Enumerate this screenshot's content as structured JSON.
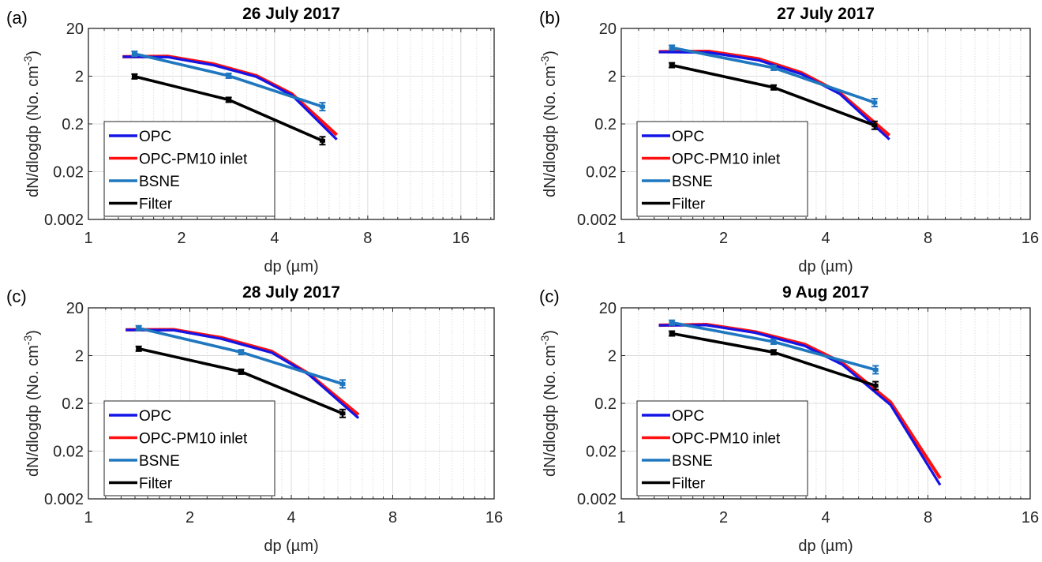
{
  "legend_entries": [
    {
      "name": "OPC",
      "color": "#1414E6"
    },
    {
      "name": "OPC-PM10 inlet",
      "color": "#FF1010"
    },
    {
      "name": "BSNE",
      "color": "#1F77BF"
    },
    {
      "name": "Filter",
      "color": "#000000"
    }
  ],
  "chart_data": [
    {
      "type": "line",
      "panel_label": "(a)",
      "title": "26 July 2017",
      "xlabel": "dp (µm)",
      "ylabel": "dN/dlogdp (No. cm",
      "ylabel_sup": "-3",
      "ylabel_end": ")",
      "xscale": "log2",
      "yscale": "log10",
      "xlim": [
        1,
        20.5
      ],
      "ylim": [
        0.002,
        20
      ],
      "xticks": [
        1,
        2,
        4,
        8,
        16
      ],
      "xtick_labels": [
        "1",
        "2",
        "4",
        "8",
        "16"
      ],
      "yticks": [
        0.002,
        0.02,
        0.2,
        2,
        20
      ],
      "ytick_labels": [
        "0.002",
        "0.02",
        "0.2",
        "2",
        "20"
      ],
      "grid": true,
      "legend_position": "bottom-left",
      "series": [
        {
          "name": "OPC",
          "x": [
            1.29,
            1.81,
            2.54,
            3.49,
            4.55,
            6.35
          ],
          "y": [
            5.1,
            5.0,
            3.4,
            1.95,
            0.8,
            0.094
          ]
        },
        {
          "name": "OPC-PM10 inlet",
          "x": [
            1.29,
            1.81,
            2.54,
            3.49,
            4.55,
            6.35
          ],
          "y": [
            5.1,
            5.2,
            3.6,
            2.05,
            0.85,
            0.118
          ]
        },
        {
          "name": "BSNE",
          "x": [
            1.41,
            2.84,
            5.71
          ],
          "y": [
            5.9,
            2.04,
            0.46
          ],
          "error_bars": true
        },
        {
          "name": "Filter",
          "x": [
            1.41,
            2.84,
            5.71
          ],
          "y": [
            1.97,
            0.64,
            0.089
          ],
          "error_bars": true
        }
      ]
    },
    {
      "type": "line",
      "panel_label": "(b)",
      "title": "27 July 2017",
      "xlabel": "dp (µm)",
      "ylabel": "dN/dlogdp (No. cm",
      "ylabel_sup": "-3",
      "ylabel_end": ")",
      "xscale": "log2",
      "yscale": "log10",
      "xlim": [
        1,
        16
      ],
      "ylim": [
        0.002,
        20
      ],
      "xticks": [
        1,
        2,
        4,
        8,
        16
      ],
      "xtick_labels": [
        "1",
        "2",
        "4",
        "8",
        "16"
      ],
      "yticks": [
        0.002,
        0.02,
        0.2,
        2,
        20
      ],
      "ytick_labels": [
        "0.002",
        "0.02",
        "0.2",
        "2",
        "20"
      ],
      "grid": true,
      "legend_position": "bottom-left",
      "series": [
        {
          "name": "OPC",
          "x": [
            1.29,
            1.81,
            2.54,
            3.4,
            4.4,
            6.16
          ],
          "y": [
            6.4,
            6.3,
            4.3,
            2.2,
            0.85,
            0.095
          ]
        },
        {
          "name": "OPC-PM10 inlet",
          "x": [
            1.29,
            1.81,
            2.54,
            3.4,
            4.4,
            6.16
          ],
          "y": [
            6.5,
            6.6,
            4.6,
            2.35,
            0.9,
            0.115
          ]
        },
        {
          "name": "BSNE",
          "x": [
            1.41,
            2.81,
            5.57
          ],
          "y": [
            7.9,
            2.99,
            0.56
          ],
          "error_bars": true
        },
        {
          "name": "Filter",
          "x": [
            1.41,
            2.81,
            5.57
          ],
          "y": [
            3.4,
            1.16,
            0.187
          ],
          "error_bars": true
        }
      ]
    },
    {
      "type": "line",
      "panel_label": "(c)",
      "title": "28 July 2017",
      "xlabel": "dp (µm)",
      "ylabel": "dN/dlogdp  (No. cm",
      "ylabel_sup": "-3",
      "ylabel_end": ")",
      "xscale": "log2",
      "yscale": "log10",
      "xlim": [
        1,
        16
      ],
      "ylim": [
        0.002,
        20
      ],
      "xticks": [
        1,
        2,
        4,
        8,
        16
      ],
      "xtick_labels": [
        "1",
        "2",
        "4",
        "8",
        "16"
      ],
      "yticks": [
        0.002,
        0.02,
        0.2,
        2,
        20
      ],
      "ytick_labels": [
        "0.002",
        "0.02",
        "0.2",
        "2",
        "20"
      ],
      "grid": true,
      "legend_position": "bottom-left",
      "series": [
        {
          "name": "OPC",
          "x": [
            1.29,
            1.79,
            2.48,
            3.5,
            4.51,
            6.33
          ],
          "y": [
            6.9,
            6.8,
            4.5,
            2.3,
            0.8,
            0.098
          ]
        },
        {
          "name": "OPC-PM10 inlet",
          "x": [
            1.29,
            1.79,
            2.48,
            3.5,
            4.51,
            6.33
          ],
          "y": [
            6.95,
            7.0,
            4.74,
            2.45,
            0.83,
            0.115
          ]
        },
        {
          "name": "BSNE",
          "x": [
            1.41,
            2.84,
            5.68
          ],
          "y": [
            7.5,
            2.36,
            0.51
          ],
          "error_bars": true
        },
        {
          "name": "Filter",
          "x": [
            1.41,
            2.84,
            5.68
          ],
          "y": [
            2.78,
            0.92,
            0.123
          ],
          "error_bars": true
        }
      ]
    },
    {
      "type": "line",
      "panel_label": "(c)",
      "title": "9 Aug 2017",
      "xlabel": "dp (µm)",
      "ylabel": "dN/dlogdp  (No. cm",
      "ylabel_sup": "-3",
      "ylabel_end": ")",
      "xscale": "log2",
      "yscale": "log10",
      "xlim": [
        1,
        16
      ],
      "ylim": [
        0.002,
        20
      ],
      "xticks": [
        1,
        2,
        4,
        8,
        16
      ],
      "xtick_labels": [
        "1",
        "2",
        "4",
        "8",
        "16"
      ],
      "yticks": [
        0.002,
        0.02,
        0.2,
        2,
        20
      ],
      "ytick_labels": [
        "0.002",
        "0.02",
        "0.2",
        "2",
        "20"
      ],
      "grid": true,
      "legend_position": "bottom-left",
      "series": [
        {
          "name": "OPC",
          "x": [
            1.29,
            1.78,
            2.48,
            3.47,
            4.47,
            6.21,
            8.69
          ],
          "y": [
            8.6,
            8.7,
            6.0,
            3.2,
            1.3,
            0.185,
            0.0039
          ]
        },
        {
          "name": "OPC-PM10 inlet",
          "x": [
            1.29,
            1.78,
            2.48,
            3.47,
            4.47,
            6.21,
            8.69
          ],
          "y": [
            8.67,
            8.96,
            6.3,
            3.44,
            1.42,
            0.212,
            0.0054
          ]
        },
        {
          "name": "BSNE",
          "x": [
            1.41,
            2.81,
            5.61
          ],
          "y": [
            9.8,
            3.9,
            1.01
          ],
          "error_bars": true
        },
        {
          "name": "Filter",
          "x": [
            1.41,
            2.81,
            5.61
          ],
          "y": [
            5.8,
            2.35,
            0.47
          ],
          "error_bars": true
        }
      ]
    }
  ]
}
